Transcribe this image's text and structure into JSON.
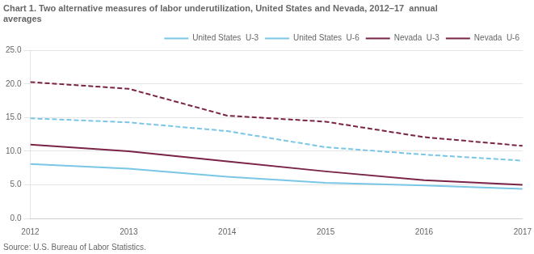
{
  "chart_data": {
    "type": "line",
    "title": [
      "Chart 1. Two alternative measures of labor underutilization, United States and Nevada, 2012–17  annual",
      "averages"
    ],
    "annotations": [
      "Source: U.S. Bureau of Labor Statistics."
    ],
    "x": [
      2012,
      2013,
      2014,
      2015,
      2016,
      2017
    ],
    "series": [
      {
        "name": "United States  U-3",
        "color": "#79c6e7",
        "line_style": "solid",
        "values": [
          8.1,
          7.4,
          6.2,
          5.3,
          4.9,
          4.4
        ]
      },
      {
        "name": "United States  U-6",
        "color": "#79c6e7",
        "line_style": "dashed",
        "values": [
          14.9,
          14.3,
          13.0,
          10.6,
          9.5,
          8.6
        ]
      },
      {
        "name": "Nevada  U-3",
        "color": "#7b2346",
        "line_style": "solid",
        "values": [
          11.0,
          10.0,
          8.5,
          7.0,
          5.7,
          5.0
        ]
      },
      {
        "name": "Nevada  U-6",
        "color": "#7b2346",
        "line_style": "dashed",
        "values": [
          20.3,
          19.3,
          15.3,
          14.4,
          12.1,
          10.8
        ]
      }
    ],
    "xlim": [
      2012,
      2017
    ],
    "xticks": [
      2012,
      2013,
      2014,
      2015,
      2016,
      2017
    ],
    "ylim": [
      0.0,
      25.0
    ],
    "yticks": [
      {
        "value": 0.0,
        "label": "0.0"
      },
      {
        "value": 5.0,
        "label": "5.0"
      },
      {
        "value": 10.0,
        "label": "10.0"
      },
      {
        "value": 15.0,
        "label": "15.0"
      },
      {
        "value": 20.0,
        "label": "20.0"
      },
      {
        "value": 25.0,
        "label": "25.0"
      }
    ],
    "grid": "y",
    "legend": "upper right"
  }
}
